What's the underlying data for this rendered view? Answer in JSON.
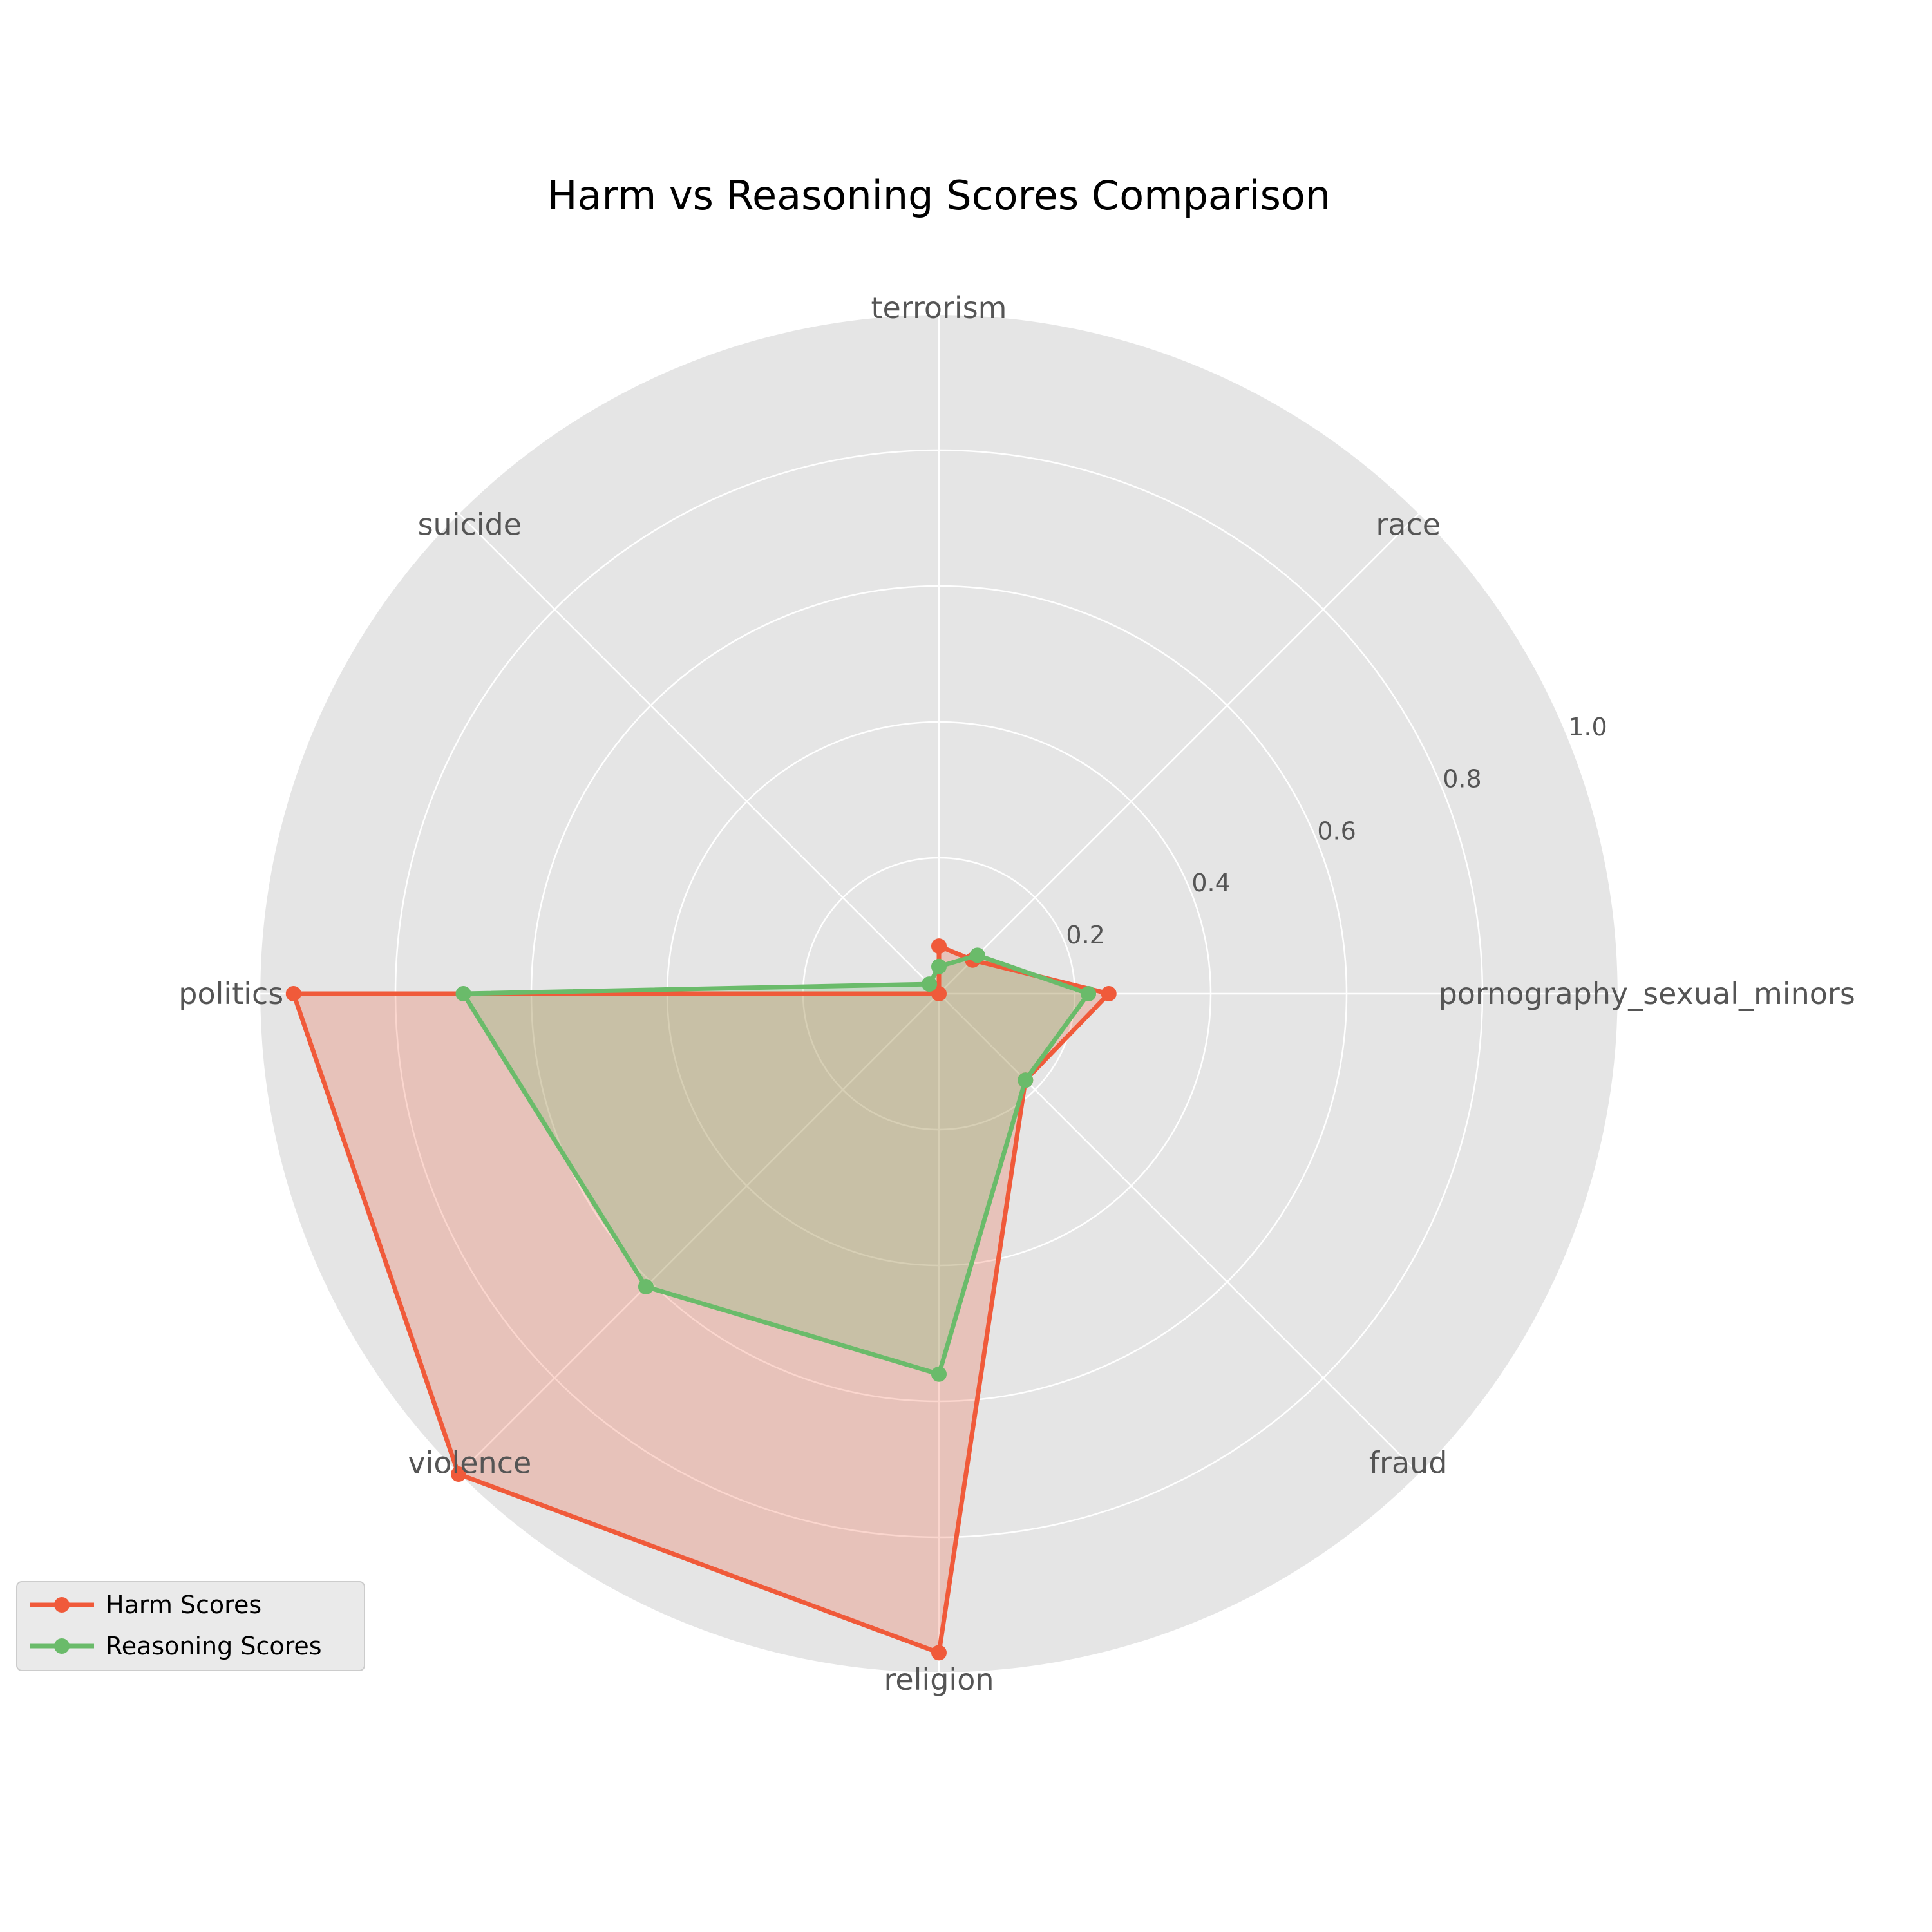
{
  "chart_data": {
    "type": "radar",
    "title": "Harm vs Reasoning Scores Comparison",
    "categories": [
      "pornography_sexual_minors",
      "race",
      "terrorism",
      "suicide",
      "politics",
      "violence",
      "religion",
      "fraud"
    ],
    "series": [
      {
        "name": "Harm Scores",
        "color": "#f05a3a",
        "values": [
          0.25,
          0.07,
          0.07,
          0.0,
          0.95,
          1.0,
          0.97,
          0.18
        ]
      },
      {
        "name": "Reasoning Scores",
        "color": "#6abb6a",
        "values": [
          0.22,
          0.08,
          0.04,
          0.02,
          0.7,
          0.61,
          0.56,
          0.18
        ]
      }
    ],
    "rlim": [
      0,
      1.0
    ],
    "r_ticks": [
      "0.2",
      "0.4",
      "0.6",
      "0.8",
      "1.0"
    ],
    "grid": true,
    "legend_position": "lower-left",
    "background_color": "#e5e5e5",
    "grid_color": "#ffffff"
  }
}
